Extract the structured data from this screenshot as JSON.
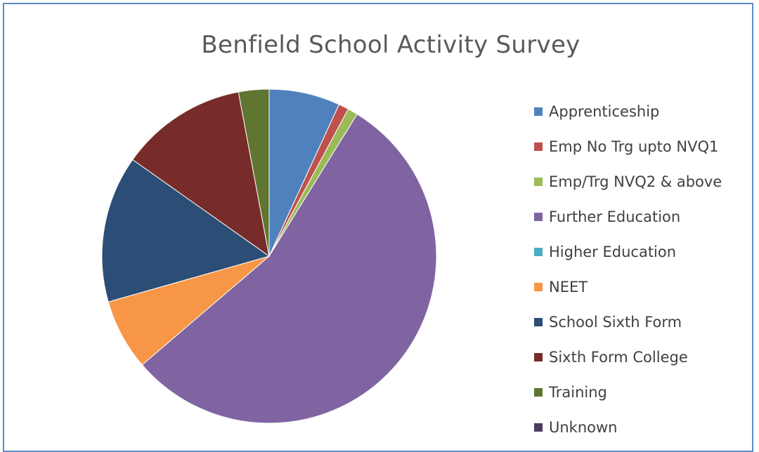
{
  "chart_data": {
    "type": "pie",
    "title": "Benfield School Activity Survey",
    "legend_position": "right",
    "slices": [
      {
        "label": "Apprenticeship",
        "value": 7.0,
        "color": "#4f81bd"
      },
      {
        "label": "Emp No Trg upto NVQ1",
        "value": 1.0,
        "color": "#c0504d"
      },
      {
        "label": "Emp/Trg NVQ2 & above",
        "value": 1.0,
        "color": "#9bbb59"
      },
      {
        "label": "Further Education",
        "value": 56.0,
        "color": "#8064a2"
      },
      {
        "label": "Higher Education",
        "value": 0.0,
        "color": "#4bacc6"
      },
      {
        "label": "NEET",
        "value": 7.0,
        "color": "#f79646"
      },
      {
        "label": "School Sixth Form",
        "value": 14.5,
        "color": "#2c4d75"
      },
      {
        "label": "Sixth Form College",
        "value": 12.5,
        "color": "#772c2a"
      },
      {
        "label": "Training",
        "value": 3.0,
        "color": "#5f7530"
      },
      {
        "label": "Unknown",
        "value": 0.0,
        "color": "#4d3b62"
      }
    ]
  }
}
